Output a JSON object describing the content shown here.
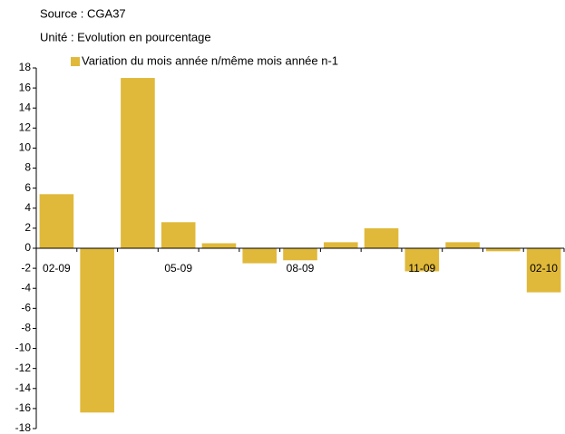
{
  "chart_data": {
    "type": "bar",
    "subtitle": "Source : CGA37",
    "y_label": "Unité : Evolution en pourcentage",
    "categories": [
      "02-09",
      null,
      null,
      "05-09",
      null,
      null,
      "08-09",
      null,
      null,
      "11-09",
      null,
      null,
      "02-10"
    ],
    "series": [
      {
        "name": "Variation du mois année n/même mois année n-1",
        "color": "#e0b93a",
        "values": [
          5.4,
          -16.4,
          17,
          2.6,
          0.5,
          -1.5,
          -1.2,
          0.6,
          2.0,
          -2.3,
          0.6,
          -0.3,
          -4.4
        ]
      }
    ],
    "ylim": [
      -18,
      18
    ],
    "yticks": [
      -18,
      -16,
      -14,
      -12,
      -10,
      -8,
      -6,
      -4,
      -2,
      0,
      2,
      4,
      6,
      8,
      10,
      12,
      14,
      16,
      18
    ],
    "grid": false
  }
}
